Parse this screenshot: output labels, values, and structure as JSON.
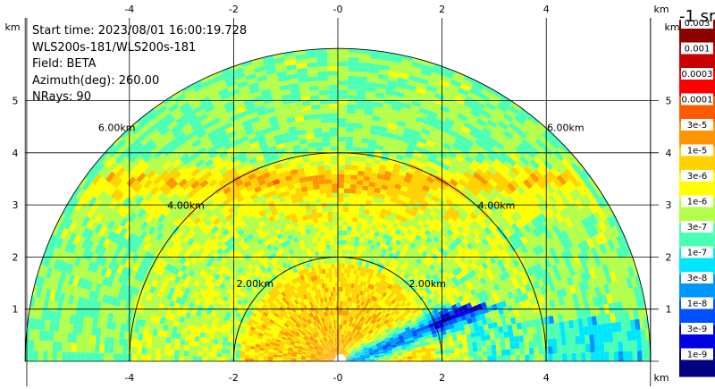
{
  "header": {
    "start_time": "Start time: 2023/08/01 16:00:19.728",
    "instrument": "WLS200s-181/WLS200s-181",
    "field": "Field: BETA",
    "azimuth": "Azimuth(deg): 260.00",
    "nrays": "NRays: 90"
  },
  "chart_data": {
    "type": "heatmap",
    "subtype": "rhi-polar-scan",
    "field": "BETA",
    "azimuth_deg": 260.0,
    "nrays": 90,
    "start_time": "2023/08/01 16:00:19.728",
    "x_axis": {
      "unit_label": "km",
      "range": [
        -6,
        6
      ],
      "ticks": [
        "-4",
        "-2",
        "-0",
        "2",
        "4"
      ]
    },
    "y_axis": {
      "unit_label": "km",
      "range": [
        0,
        5.5
      ],
      "ticks": [
        "1",
        "2",
        "3",
        "4",
        "5"
      ]
    },
    "range_rings": [
      {
        "radius_km": 2,
        "label": "2.00km"
      },
      {
        "radius_km": 4,
        "label": "4.00km"
      },
      {
        "radius_km": 6,
        "label": "6.00km"
      }
    ],
    "max_range_km": 6,
    "grid": true,
    "colorbar": {
      "unit": "-1 sr",
      "labels": [
        "0.003",
        "0.001",
        "0.0003",
        "0.0001",
        "3e-5",
        "1e-5",
        "3e-6",
        "1e-6",
        "3e-7",
        "1e-7",
        "3e-8",
        "1e-8",
        "3e-9",
        "1e-9"
      ],
      "colors": [
        "#8b0000",
        "#c80000",
        "#ff0000",
        "#ff5a00",
        "#ff9600",
        "#ffd200",
        "#ffff00",
        "#b4ff4b",
        "#4bffb4",
        "#00e6ff",
        "#0096ff",
        "#0050ff",
        "#0000e0",
        "#000080"
      ]
    },
    "features": [
      {
        "description": "dense high-backscatter layer",
        "altitude_km": 3.5,
        "level": "1e-5"
      },
      {
        "description": "low-backscatter pocket",
        "x_km": 1.5,
        "altitude_km": 0.3,
        "level": "3e-9"
      }
    ]
  }
}
